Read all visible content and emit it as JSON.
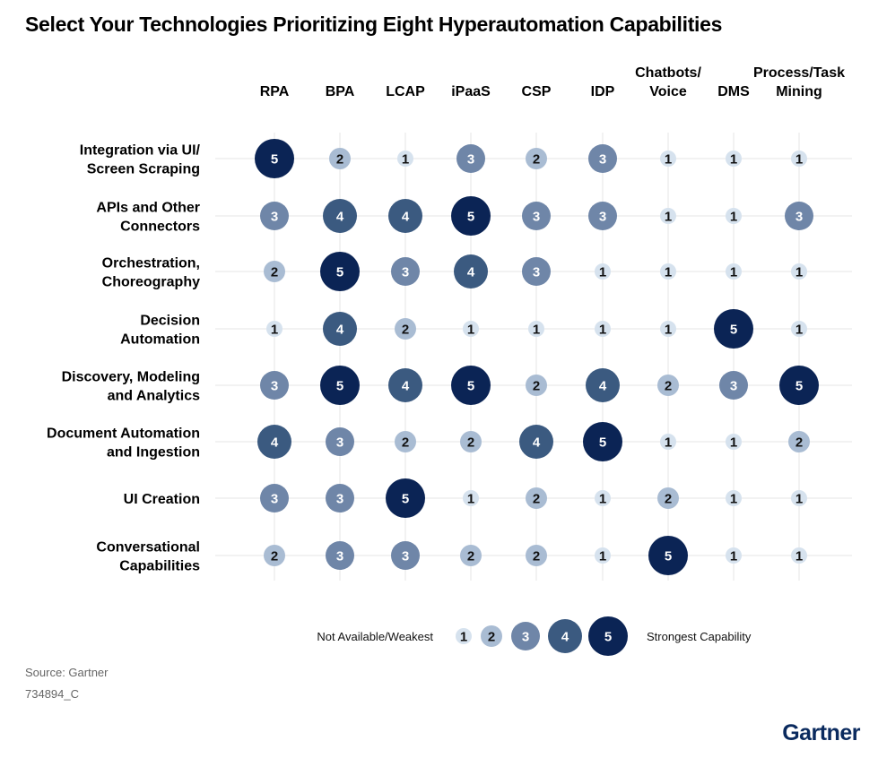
{
  "title": "Select Your Technologies Prioritizing Eight Hyperautomation Capabilities",
  "chart_data": {
    "type": "bubble-matrix",
    "title": "Select Your Technologies Prioritizing Eight Hyperautomation Capabilities",
    "columns": [
      [
        "RPA"
      ],
      [
        "BPA"
      ],
      [
        "LCAP"
      ],
      [
        "iPaaS"
      ],
      [
        "CSP"
      ],
      [
        "IDP"
      ],
      [
        "Chatbots/",
        "Voice"
      ],
      [
        "DMS"
      ],
      [
        "Process/Task",
        "Mining"
      ]
    ],
    "rows": [
      [
        "Integration via UI/",
        "Screen Scraping"
      ],
      [
        "APIs and Other",
        "Connectors"
      ],
      [
        "Orchestration,",
        "Choreography"
      ],
      [
        "Decision",
        "Automation"
      ],
      [
        "Discovery, Modeling",
        "and Analytics"
      ],
      [
        "Document Automation",
        "and Ingestion"
      ],
      [
        "UI Creation"
      ],
      [
        "Conversational",
        "Capabilities"
      ]
    ],
    "values": [
      [
        5,
        2,
        1,
        3,
        2,
        3,
        1,
        1,
        1
      ],
      [
        3,
        4,
        4,
        5,
        3,
        3,
        1,
        1,
        3
      ],
      [
        2,
        5,
        3,
        4,
        3,
        1,
        1,
        1,
        1
      ],
      [
        1,
        4,
        2,
        1,
        1,
        1,
        1,
        5,
        1
      ],
      [
        3,
        5,
        4,
        5,
        2,
        4,
        2,
        3,
        5
      ],
      [
        4,
        3,
        2,
        2,
        4,
        5,
        1,
        1,
        2
      ],
      [
        3,
        3,
        5,
        1,
        2,
        1,
        2,
        1,
        1
      ],
      [
        2,
        3,
        3,
        2,
        2,
        1,
        5,
        1,
        1
      ]
    ],
    "scale": [
      1,
      2,
      3,
      4,
      5
    ],
    "legend": {
      "low_label": "Not Available/Weakest",
      "high_label": "Strongest Capability"
    },
    "colors": {
      "1": "#d6e2ee",
      "2": "#a9bcd3",
      "3": "#6f86a8",
      "4": "#3b5a80",
      "5": "#0b2455",
      "text_dark": "#111111",
      "text_light": "#ffffff",
      "grid": "#e6e6e6"
    }
  },
  "footer": {
    "source": "Source: Gartner",
    "doc_id": "734894_C",
    "brand": "Gartner"
  }
}
